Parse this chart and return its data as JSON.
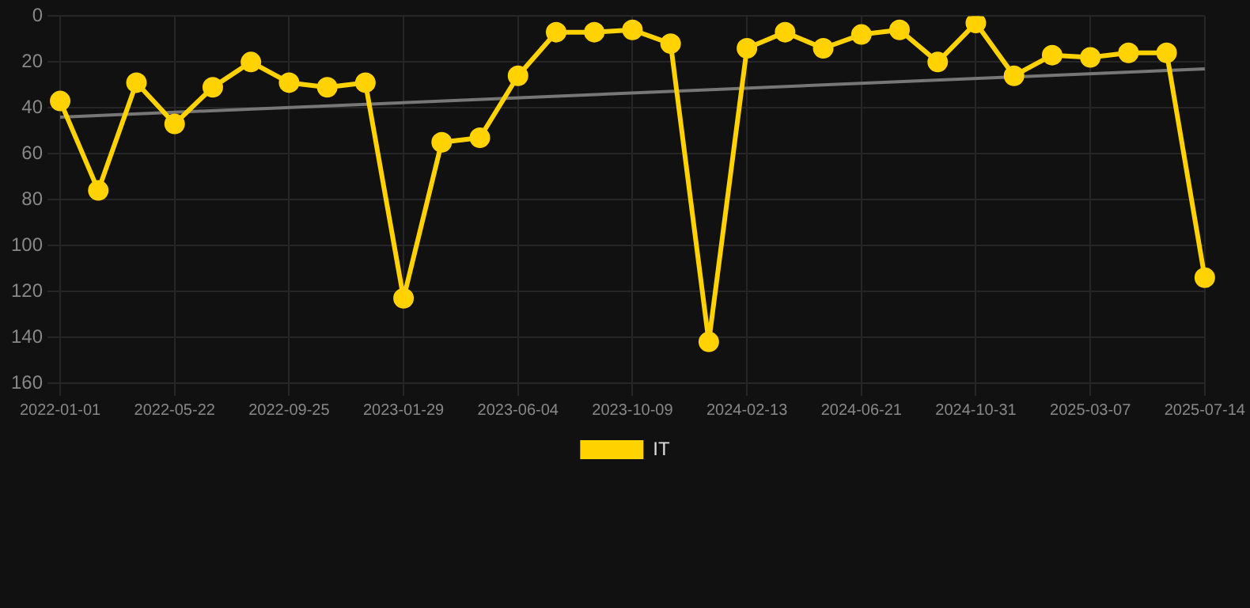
{
  "chart_data": {
    "type": "line",
    "categories": [
      "2022-01-01",
      null,
      null,
      "2022-05-22",
      null,
      null,
      "2022-09-25",
      null,
      null,
      "2023-01-29",
      null,
      null,
      "2023-06-04",
      null,
      null,
      "2023-10-09",
      null,
      null,
      "2024-02-13",
      null,
      null,
      "2024-06-21",
      null,
      null,
      "2024-10-31",
      null,
      null,
      "2025-03-07",
      null,
      null,
      "2025-07-14"
    ],
    "series": [
      {
        "name": "IT",
        "color": "#ffd200",
        "marker": "circle",
        "values": [
          37,
          76,
          29,
          47,
          31,
          20,
          29,
          31,
          29,
          123,
          55,
          53,
          26,
          7,
          7,
          6,
          12,
          142,
          14,
          7,
          14,
          8,
          6,
          20,
          3,
          26,
          17,
          18,
          16,
          16,
          114
        ]
      },
      {
        "color": "#777777",
        "marker": "none",
        "values": [
          44,
          null,
          null,
          null,
          null,
          null,
          null,
          null,
          null,
          null,
          null,
          null,
          null,
          null,
          null,
          null,
          null,
          null,
          null,
          null,
          null,
          null,
          null,
          null,
          null,
          null,
          null,
          null,
          null,
          null,
          23
        ]
      }
    ],
    "ylim": [
      160,
      0
    ],
    "yticks": [
      0,
      20,
      40,
      60,
      80,
      100,
      120,
      140,
      160
    ],
    "grid": true,
    "legend": "bottom"
  }
}
